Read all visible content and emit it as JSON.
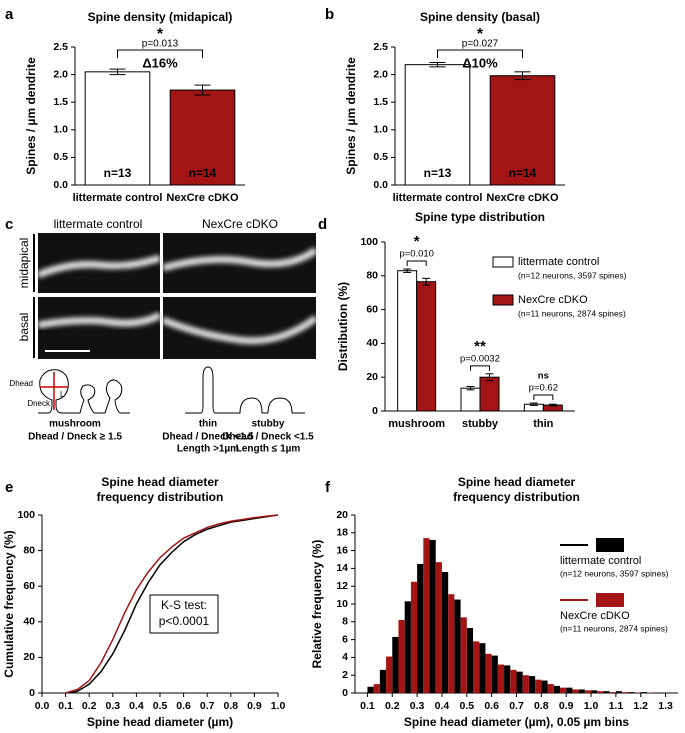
{
  "chart_data": [
    {
      "type": "bar",
      "panel": "a",
      "title": "Spine density (midapical)",
      "y_label": "Spines / µm dendrite",
      "categories": [
        "littermate control",
        "NexCre cDKO"
      ],
      "values": [
        2.05,
        1.72
      ],
      "errors": [
        0.05,
        0.09
      ],
      "colors": [
        "#ffffff",
        "#a31515"
      ],
      "n_labels": [
        "n=13",
        "n=14"
      ],
      "ylim": [
        0,
        2.5
      ],
      "yticks": [
        {
          "value": 0,
          "label": "0.0"
        },
        0.5,
        {
          "value": 1,
          "label": "1.0"
        },
        1.5,
        {
          "value": 2,
          "label": "2.0"
        },
        2.5
      ],
      "significance": {
        "stars": "*",
        "p": "p=0.013",
        "delta": "Δ16%"
      }
    },
    {
      "type": "bar",
      "panel": "b",
      "title": "Spine density (basal)",
      "y_label": "Spines / µm dendrite",
      "categories": [
        "littermate control",
        "NexCre cDKO"
      ],
      "values": [
        2.18,
        1.98
      ],
      "errors": [
        0.04,
        0.07
      ],
      "colors": [
        "#ffffff",
        "#a31515"
      ],
      "n_labels": [
        "n=13",
        "n=14"
      ],
      "ylim": [
        0,
        2.5
      ],
      "yticks": [
        {
          "value": 0,
          "label": "0.0"
        },
        0.5,
        {
          "value": 1,
          "label": "1.0"
        },
        1.5,
        {
          "value": 2,
          "label": "2.0"
        },
        2.5
      ],
      "significance": {
        "stars": "*",
        "p": "p=0.027",
        "delta": "Δ10%"
      }
    },
    {
      "type": "bar",
      "panel": "d",
      "title": "Spine type distribution",
      "y_label": "Distribution (%)",
      "categories": [
        "mushroom",
        "stubby",
        "thin"
      ],
      "series": [
        {
          "name": "littermate control",
          "note": "(n=12 neurons, 3597 spines)",
          "color": "#ffffff",
          "values": [
            83,
            13.5,
            4
          ],
          "errors": [
            1,
            1,
            0.7
          ]
        },
        {
          "name": "NexCre cDKO",
          "note": "(n=11 neurons, 2874 spines)",
          "color": "#a31515",
          "values": [
            76.5,
            20,
            3.5
          ],
          "errors": [
            2,
            2,
            0.5
          ]
        }
      ],
      "ylim": [
        0,
        100
      ],
      "yticks": [
        0,
        20,
        40,
        60,
        80,
        100
      ],
      "significance": [
        {
          "stars": "*",
          "p": "p=0.010"
        },
        {
          "stars": "**",
          "p": "p=0.0032"
        },
        {
          "stars": "ns",
          "p": "p=0.62"
        }
      ]
    },
    {
      "type": "line",
      "panel": "e",
      "title": [
        "Spine head diameter",
        "frequency distribution"
      ],
      "x_label": "Spine head diameter (µm)",
      "y_label": "Cumulative frequency (%)",
      "x": [
        0.1,
        0.15,
        0.2,
        0.25,
        0.3,
        0.35,
        0.4,
        0.45,
        0.5,
        0.55,
        0.6,
        0.65,
        0.7,
        0.75,
        0.8,
        0.85,
        0.9,
        0.95,
        1.0
      ],
      "series": [
        {
          "color": "#000000",
          "values": [
            0,
            1,
            5,
            12,
            22,
            35,
            50,
            62,
            72,
            79,
            85,
            89,
            92,
            94,
            96,
            97,
            98,
            99,
            100
          ]
        },
        {
          "color": "#a31515",
          "values": [
            0,
            2,
            7,
            17,
            30,
            45,
            58,
            68,
            76,
            82,
            87,
            90,
            93,
            95,
            96.5,
            97.5,
            98.5,
            99.3,
            100
          ]
        }
      ],
      "xlim": [
        0,
        1
      ],
      "xticks": [
        {
          "value": 0,
          "label": "0.0"
        },
        0.1,
        0.2,
        0.3,
        0.4,
        0.5,
        0.6,
        0.7,
        0.8,
        0.9,
        {
          "value": 1,
          "label": "1.0"
        }
      ],
      "ylim": [
        0,
        100
      ],
      "yticks": [
        0,
        20,
        40,
        60,
        80,
        100
      ],
      "annotation": [
        "K-S test:",
        "p<0.0001"
      ]
    },
    {
      "type": "histogram",
      "panel": "f",
      "title": [
        "Spine head diameter",
        "frequency distribution"
      ],
      "x_label": "Spine head diameter (µm), 0.05 µm bins",
      "y_label": "Relative frequency (%)",
      "bins": [
        0.1,
        0.15,
        0.2,
        0.25,
        0.3,
        0.35,
        0.4,
        0.45,
        0.5,
        0.55,
        0.6,
        0.65,
        0.7,
        0.75,
        0.8,
        0.85,
        0.9,
        0.95,
        1.0,
        1.05,
        1.1,
        1.15,
        1.2,
        1.25,
        1.3
      ],
      "series": [
        {
          "name": "littermate control",
          "note": "(n=12 neurons, 3597 spines)",
          "color": "#000000",
          "values": [
            0.7,
            2.6,
            6.3,
            10.3,
            14.5,
            17.2,
            13.6,
            10.5,
            7.3,
            5.6,
            4.2,
            3.1,
            2.4,
            1.9,
            1.4,
            0.8,
            0.6,
            0.4,
            0.3,
            0.2,
            0.2,
            0.1,
            0.1,
            0.05
          ]
        },
        {
          "name": "NexCre cDKO",
          "note": "(n=11 neurons, 2874 spines)",
          "color": "#a31515",
          "values": [
            1.0,
            4.1,
            8.2,
            12.5,
            17.4,
            14.7,
            11.1,
            8.5,
            5.8,
            4.4,
            3.2,
            2.6,
            2.0,
            1.5,
            1.0,
            0.6,
            0.4,
            0.3,
            0.2,
            0.1,
            0.1,
            0.05,
            0.05,
            0
          ]
        }
      ],
      "xlim": [
        0.05,
        1.35
      ],
      "xticks": [
        0.1,
        0.2,
        0.3,
        0.4,
        0.5,
        0.6,
        0.7,
        0.8,
        0.9,
        {
          "value": 1,
          "label": "1.0"
        },
        1.1,
        1.2,
        1.3
      ],
      "ylim": [
        0,
        20
      ],
      "yticks": [
        0,
        2,
        4,
        6,
        8,
        10,
        12,
        14,
        16,
        18,
        20
      ]
    }
  ],
  "image_panel": {
    "panel": "c",
    "columns": [
      "littermate control",
      "NexCre cDKO"
    ],
    "rows": [
      "midapical",
      "basal"
    ],
    "diagram_labels": [
      "Dhead",
      "Dneck",
      "L"
    ],
    "spine_types": [
      {
        "name": "mushroom",
        "criteria": [
          "Dhead / Dneck ≥ 1.5"
        ]
      },
      {
        "name": "thin",
        "criteria": [
          "Dhead / Dneck <1.5",
          "Length >1µm"
        ]
      },
      {
        "name": "stubby",
        "criteria": [
          "Dhead / Dneck <1.5",
          "Length ≤ 1µm"
        ]
      }
    ]
  }
}
